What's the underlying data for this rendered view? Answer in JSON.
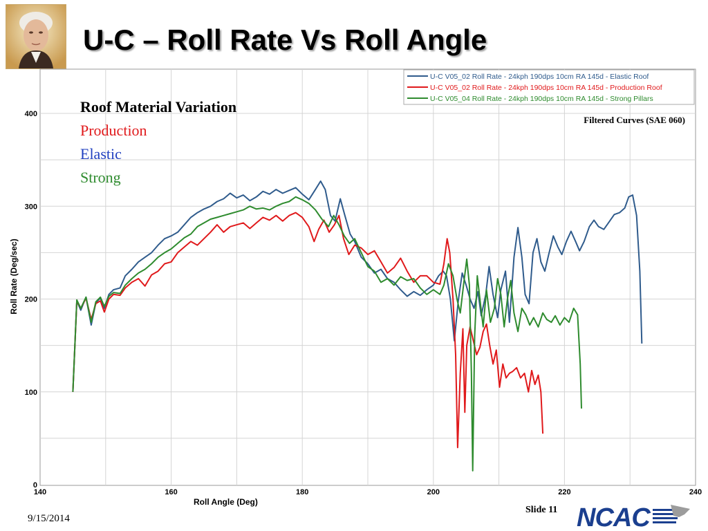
{
  "slide": {
    "title": "U-C – Roll Rate Vs Roll Angle",
    "date": "9/15/2014",
    "slide_number": "Slide 11",
    "logo_text": "NCAC"
  },
  "colors": {
    "elastic": "#2f5b8c",
    "production": "#e0191b",
    "strong": "#2e8b2e",
    "grid": "#d4d4d4"
  },
  "icons": {
    "portrait": "portrait-image",
    "logo": "ncac-logo"
  },
  "chart_data": {
    "type": "line",
    "xlabel": "Roll Angle (Deg)",
    "ylabel": "Roll Rate (Deg/sec)",
    "xlim": [
      140,
      240
    ],
    "ylim": [
      0,
      450
    ],
    "xticks": [
      140,
      160,
      180,
      200,
      220,
      240
    ],
    "yticks": [
      0,
      100,
      200,
      300,
      400
    ],
    "grid": true,
    "legend_position": "top-right",
    "annotations": {
      "heading": "Roof Material Variation",
      "production": "Production",
      "elastic": "Elastic",
      "strong": "Strong",
      "filter_note": "Filtered Curves (SAE 060)"
    },
    "series": [
      {
        "name": "U-C V05_02  Roll Rate - 24kph 190dps 10cm RA 145d - Elastic Roof",
        "color": "#2f5b8c",
        "points": [
          [
            145,
            100
          ],
          [
            145.6,
            198
          ],
          [
            146.2,
            188
          ],
          [
            147,
            202
          ],
          [
            147.8,
            172
          ],
          [
            148.5,
            196
          ],
          [
            149.2,
            201
          ],
          [
            149.8,
            190
          ],
          [
            150.5,
            205
          ],
          [
            151.2,
            210
          ],
          [
            152.2,
            212
          ],
          [
            153,
            225
          ],
          [
            154,
            232
          ],
          [
            155,
            240
          ],
          [
            156,
            245
          ],
          [
            157,
            250
          ],
          [
            158,
            258
          ],
          [
            159,
            265
          ],
          [
            160,
            268
          ],
          [
            161,
            272
          ],
          [
            162,
            280
          ],
          [
            163,
            288
          ],
          [
            164,
            293
          ],
          [
            165,
            297
          ],
          [
            166,
            300
          ],
          [
            167,
            305
          ],
          [
            168,
            308
          ],
          [
            169,
            314
          ],
          [
            170,
            309
          ],
          [
            171,
            312
          ],
          [
            172,
            306
          ],
          [
            173,
            310
          ],
          [
            174,
            316
          ],
          [
            175,
            313
          ],
          [
            176,
            318
          ],
          [
            177,
            314
          ],
          [
            178,
            317
          ],
          [
            179,
            320
          ],
          [
            180,
            313
          ],
          [
            181,
            307
          ],
          [
            182,
            318
          ],
          [
            182.8,
            327
          ],
          [
            183.5,
            318
          ],
          [
            184.3,
            290
          ],
          [
            185,
            284
          ],
          [
            185.8,
            308
          ],
          [
            186.5,
            290
          ],
          [
            187.3,
            270
          ],
          [
            188,
            262
          ],
          [
            189,
            245
          ],
          [
            190,
            238
          ],
          [
            191,
            228
          ],
          [
            192,
            232
          ],
          [
            193,
            222
          ],
          [
            194,
            218
          ],
          [
            195,
            210
          ],
          [
            196,
            203
          ],
          [
            197,
            208
          ],
          [
            198,
            204
          ],
          [
            199,
            210
          ],
          [
            200,
            215
          ],
          [
            200.8,
            225
          ],
          [
            201.5,
            230
          ],
          [
            202,
            225
          ],
          [
            202.6,
            200
          ],
          [
            203.2,
            155
          ],
          [
            203.8,
            198
          ],
          [
            204.4,
            228
          ],
          [
            205,
            215
          ],
          [
            205.6,
            200
          ],
          [
            206.2,
            190
          ],
          [
            206.8,
            208
          ],
          [
            207.3,
            182
          ],
          [
            208,
            205
          ],
          [
            208.5,
            235
          ],
          [
            209.1,
            205
          ],
          [
            209.8,
            180
          ],
          [
            210.3,
            210
          ],
          [
            211,
            230
          ],
          [
            211.6,
            175
          ],
          [
            212.3,
            245
          ],
          [
            212.9,
            277
          ],
          [
            213.5,
            245
          ],
          [
            214,
            205
          ],
          [
            214.6,
            195
          ],
          [
            215.2,
            250
          ],
          [
            215.8,
            265
          ],
          [
            216.4,
            240
          ],
          [
            217,
            230
          ],
          [
            217.6,
            248
          ],
          [
            218.3,
            268
          ],
          [
            219,
            256
          ],
          [
            219.6,
            248
          ],
          [
            220.3,
            262
          ],
          [
            221,
            273
          ],
          [
            221.7,
            262
          ],
          [
            222.3,
            252
          ],
          [
            223,
            262
          ],
          [
            223.8,
            278
          ],
          [
            224.5,
            285
          ],
          [
            225.2,
            278
          ],
          [
            226,
            275
          ],
          [
            226.8,
            283
          ],
          [
            227.6,
            291
          ],
          [
            228.4,
            293
          ],
          [
            229.2,
            298
          ],
          [
            229.8,
            310
          ],
          [
            230.4,
            312
          ],
          [
            231,
            290
          ],
          [
            231.5,
            230
          ],
          [
            231.8,
            152
          ]
        ]
      },
      {
        "name": "U-C V05_02  Roll Rate - 24kph 190dps 10cm RA 145d - Production Roof",
        "color": "#e0191b",
        "points": [
          [
            145,
            100
          ],
          [
            145.6,
            198
          ],
          [
            146.2,
            190
          ],
          [
            147,
            201
          ],
          [
            147.8,
            178
          ],
          [
            148.5,
            195
          ],
          [
            149.2,
            198
          ],
          [
            149.8,
            186
          ],
          [
            150.5,
            200
          ],
          [
            151.2,
            205
          ],
          [
            152.2,
            204
          ],
          [
            153,
            212
          ],
          [
            154,
            218
          ],
          [
            155,
            222
          ],
          [
            156,
            214
          ],
          [
            157,
            226
          ],
          [
            158,
            230
          ],
          [
            159,
            238
          ],
          [
            160,
            240
          ],
          [
            161,
            250
          ],
          [
            162,
            256
          ],
          [
            163,
            262
          ],
          [
            164,
            258
          ],
          [
            165,
            265
          ],
          [
            166,
            272
          ],
          [
            167,
            280
          ],
          [
            168,
            272
          ],
          [
            169,
            278
          ],
          [
            170,
            280
          ],
          [
            171,
            282
          ],
          [
            172,
            276
          ],
          [
            173,
            282
          ],
          [
            174,
            288
          ],
          [
            175,
            285
          ],
          [
            176,
            290
          ],
          [
            177,
            284
          ],
          [
            178,
            290
          ],
          [
            179,
            293
          ],
          [
            180,
            288
          ],
          [
            181,
            278
          ],
          [
            181.8,
            262
          ],
          [
            182.5,
            275
          ],
          [
            183.3,
            285
          ],
          [
            184.1,
            272
          ],
          [
            184.9,
            280
          ],
          [
            185.6,
            290
          ],
          [
            186.3,
            265
          ],
          [
            187.1,
            248
          ],
          [
            188,
            258
          ],
          [
            189,
            255
          ],
          [
            190,
            248
          ],
          [
            191,
            252
          ],
          [
            192,
            240
          ],
          [
            193,
            228
          ],
          [
            194,
            234
          ],
          [
            195,
            244
          ],
          [
            196,
            230
          ],
          [
            197,
            218
          ],
          [
            198,
            225
          ],
          [
            199,
            225
          ],
          [
            200,
            218
          ],
          [
            201,
            216
          ],
          [
            201.6,
            238
          ],
          [
            202.1,
            265
          ],
          [
            202.5,
            250
          ],
          [
            203,
            200
          ],
          [
            203.4,
            140
          ],
          [
            203.7,
            40
          ],
          [
            204.1,
            120
          ],
          [
            204.5,
            168
          ],
          [
            204.8,
            78
          ],
          [
            205.1,
            150
          ],
          [
            205.6,
            170
          ],
          [
            206.1,
            155
          ],
          [
            206.6,
            140
          ],
          [
            207.1,
            148
          ],
          [
            207.6,
            165
          ],
          [
            208.1,
            173
          ],
          [
            208.6,
            150
          ],
          [
            209.1,
            130
          ],
          [
            209.6,
            145
          ],
          [
            210.1,
            105
          ],
          [
            210.6,
            130
          ],
          [
            211.1,
            115
          ],
          [
            211.6,
            120
          ],
          [
            212.1,
            122
          ],
          [
            212.7,
            126
          ],
          [
            213.3,
            115
          ],
          [
            213.9,
            120
          ],
          [
            214.5,
            100
          ],
          [
            215,
            123
          ],
          [
            215.5,
            108
          ],
          [
            216,
            118
          ],
          [
            216.4,
            100
          ],
          [
            216.7,
            55
          ]
        ]
      },
      {
        "name": "U-C V05_04  Roll Rate - 24kph 190dps 10cm RA 145d - Strong Pillars",
        "color": "#2e8b2e",
        "points": [
          [
            145,
            100
          ],
          [
            145.6,
            199
          ],
          [
            146.2,
            190
          ],
          [
            147,
            202
          ],
          [
            147.8,
            175
          ],
          [
            148.5,
            197
          ],
          [
            149.2,
            202
          ],
          [
            149.8,
            192
          ],
          [
            150.5,
            203
          ],
          [
            151.2,
            207
          ],
          [
            152.2,
            206
          ],
          [
            153,
            215
          ],
          [
            154,
            222
          ],
          [
            155,
            228
          ],
          [
            156,
            232
          ],
          [
            157,
            238
          ],
          [
            158,
            245
          ],
          [
            159,
            250
          ],
          [
            160,
            254
          ],
          [
            161,
            260
          ],
          [
            162,
            266
          ],
          [
            163,
            270
          ],
          [
            164,
            278
          ],
          [
            165,
            282
          ],
          [
            166,
            286
          ],
          [
            167,
            288
          ],
          [
            168,
            290
          ],
          [
            169,
            292
          ],
          [
            170,
            294
          ],
          [
            171,
            296
          ],
          [
            172,
            300
          ],
          [
            173,
            297
          ],
          [
            174,
            298
          ],
          [
            175,
            296
          ],
          [
            176,
            300
          ],
          [
            177,
            303
          ],
          [
            178,
            305
          ],
          [
            179,
            310
          ],
          [
            180,
            307
          ],
          [
            181,
            303
          ],
          [
            182,
            296
          ],
          [
            183,
            286
          ],
          [
            184,
            278
          ],
          [
            184.8,
            290
          ],
          [
            185.6,
            280
          ],
          [
            186.4,
            268
          ],
          [
            187.2,
            260
          ],
          [
            188,
            265
          ],
          [
            189,
            250
          ],
          [
            190,
            235
          ],
          [
            191,
            230
          ],
          [
            192,
            218
          ],
          [
            193,
            222
          ],
          [
            194,
            215
          ],
          [
            195,
            224
          ],
          [
            196,
            220
          ],
          [
            197,
            222
          ],
          [
            198,
            212
          ],
          [
            199,
            205
          ],
          [
            200,
            210
          ],
          [
            201,
            205
          ],
          [
            201.6,
            215
          ],
          [
            202.3,
            238
          ],
          [
            203,
            225
          ],
          [
            203.6,
            200
          ],
          [
            204.1,
            185
          ],
          [
            204.6,
            215
          ],
          [
            205.1,
            243
          ],
          [
            205.5,
            215
          ],
          [
            205.8,
            120
          ],
          [
            206,
            15
          ],
          [
            206.3,
            160
          ],
          [
            206.7,
            225
          ],
          [
            207.1,
            200
          ],
          [
            207.6,
            170
          ],
          [
            208.1,
            210
          ],
          [
            208.7,
            175
          ],
          [
            209.3,
            190
          ],
          [
            209.8,
            222
          ],
          [
            210.3,
            205
          ],
          [
            210.8,
            170
          ],
          [
            211.3,
            200
          ],
          [
            211.8,
            220
          ],
          [
            212.3,
            185
          ],
          [
            212.9,
            165
          ],
          [
            213.5,
            190
          ],
          [
            214.1,
            183
          ],
          [
            214.7,
            172
          ],
          [
            215.3,
            180
          ],
          [
            216,
            170
          ],
          [
            216.7,
            185
          ],
          [
            217.3,
            178
          ],
          [
            218,
            175
          ],
          [
            218.6,
            182
          ],
          [
            219.3,
            172
          ],
          [
            220,
            180
          ],
          [
            220.7,
            175
          ],
          [
            221.4,
            190
          ],
          [
            222,
            183
          ],
          [
            222.4,
            130
          ],
          [
            222.6,
            82
          ]
        ]
      }
    ]
  }
}
